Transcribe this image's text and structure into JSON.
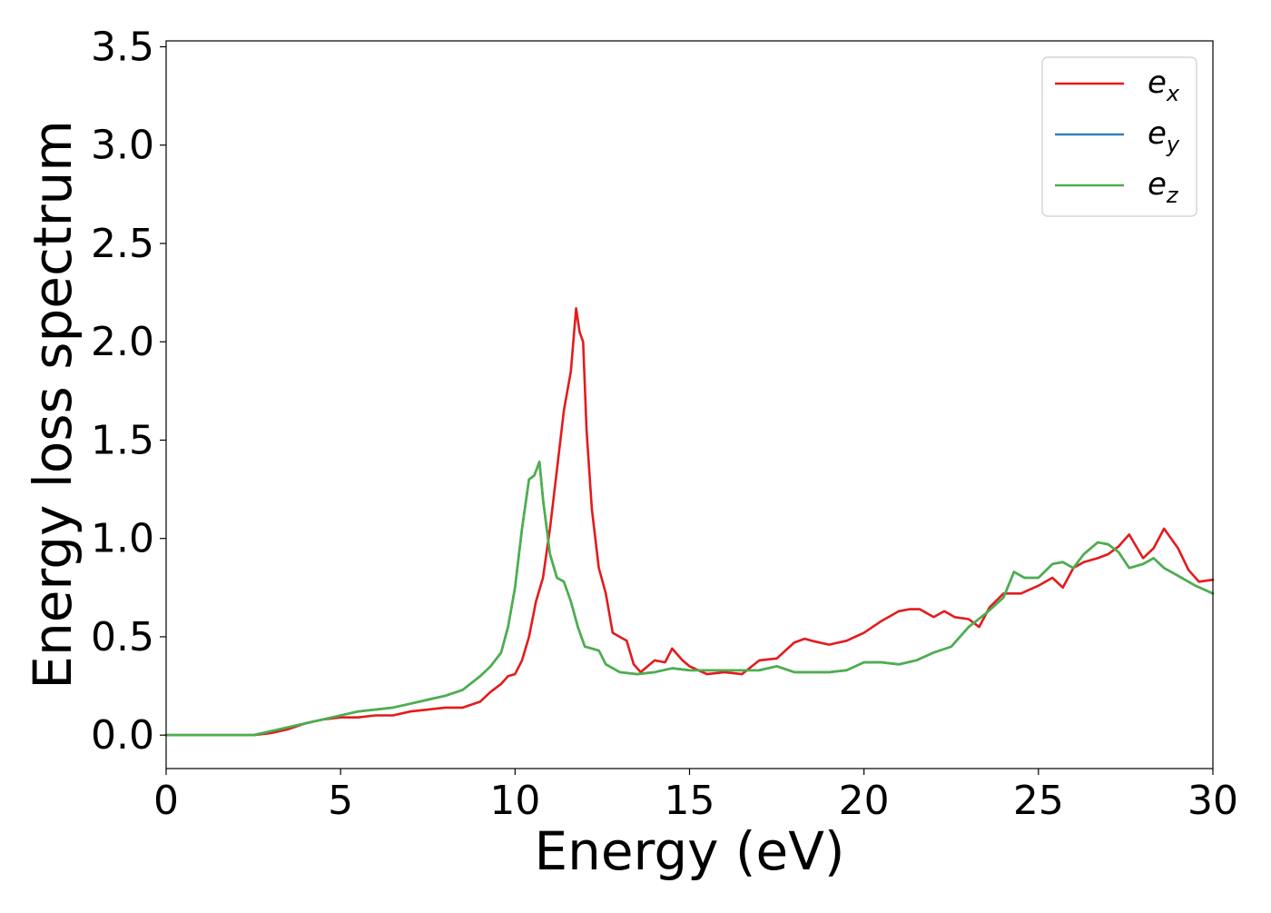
{
  "chart_data": {
    "type": "line",
    "title": "",
    "xlabel": "Energy (eV)",
    "ylabel": "Energy loss spectrum",
    "xlim": [
      0,
      30
    ],
    "ylim": [
      -0.17,
      3.53
    ],
    "xticks": [
      0,
      5,
      10,
      15,
      20,
      25,
      30
    ],
    "yticks": [
      0.0,
      0.5,
      1.0,
      1.5,
      2.0,
      2.5,
      3.0,
      3.5
    ],
    "xtick_labels": [
      "0",
      "5",
      "10",
      "15",
      "20",
      "25",
      "30"
    ],
    "ytick_labels": [
      "0.0",
      "0.5",
      "1.0",
      "1.5",
      "2.0",
      "2.5",
      "3.0",
      "3.5"
    ],
    "grid": false,
    "legend_position": "top-right",
    "series": [
      {
        "name": "e_x",
        "legend_base": "e",
        "legend_sub": "x",
        "color": "#e41a1c",
        "x": [
          0,
          1,
          2,
          2.5,
          3,
          3.5,
          4,
          4.5,
          5,
          5.5,
          6,
          6.5,
          7,
          7.5,
          8,
          8.5,
          9,
          9.3,
          9.6,
          9.8,
          10,
          10.2,
          10.4,
          10.6,
          10.8,
          11,
          11.2,
          11.4,
          11.6,
          11.75,
          11.85,
          11.95,
          12.05,
          12.2,
          12.4,
          12.6,
          12.8,
          13,
          13.2,
          13.4,
          13.6,
          14,
          14.3,
          14.5,
          14.8,
          15,
          15.5,
          16,
          16.5,
          17,
          17.5,
          18,
          18.3,
          18.5,
          19,
          19.5,
          20,
          20.5,
          21,
          21.3,
          21.6,
          22,
          22.3,
          22.6,
          23,
          23.3,
          23.6,
          24,
          24.5,
          25,
          25.4,
          25.7,
          26,
          26.3,
          26.7,
          27,
          27.3,
          27.6,
          28,
          28.3,
          28.6,
          29,
          29.3,
          29.6,
          30
        ],
        "y": [
          0.0,
          0.0,
          0.0,
          0.0,
          0.01,
          0.03,
          0.06,
          0.08,
          0.09,
          0.09,
          0.1,
          0.1,
          0.12,
          0.13,
          0.14,
          0.14,
          0.17,
          0.22,
          0.26,
          0.3,
          0.31,
          0.38,
          0.5,
          0.68,
          0.8,
          1.05,
          1.35,
          1.65,
          1.85,
          2.17,
          2.05,
          2.0,
          1.55,
          1.15,
          0.85,
          0.72,
          0.52,
          0.5,
          0.48,
          0.36,
          0.32,
          0.38,
          0.37,
          0.44,
          0.38,
          0.35,
          0.31,
          0.32,
          0.31,
          0.38,
          0.39,
          0.47,
          0.49,
          0.48,
          0.46,
          0.48,
          0.52,
          0.58,
          0.63,
          0.64,
          0.64,
          0.6,
          0.63,
          0.6,
          0.59,
          0.55,
          0.65,
          0.72,
          0.72,
          0.76,
          0.8,
          0.75,
          0.85,
          0.88,
          0.9,
          0.92,
          0.96,
          1.02,
          0.9,
          0.95,
          1.05,
          0.95,
          0.84,
          0.78,
          0.79
        ]
      },
      {
        "name": "e_y",
        "legend_base": "e",
        "legend_sub": "y",
        "color": "#377eb8",
        "x": [
          0,
          1,
          2,
          2.5,
          3,
          3.5,
          4,
          4.5,
          5,
          5.5,
          6,
          6.5,
          7,
          7.5,
          8,
          8.5,
          9,
          9.3,
          9.6,
          9.8,
          10,
          10.2,
          10.4,
          10.55,
          10.7,
          10.8,
          11,
          11.2,
          11.4,
          11.6,
          11.8,
          12,
          12.2,
          12.4,
          12.6,
          13,
          13.5,
          14,
          14.5,
          15,
          15.5,
          16,
          17,
          17.5,
          18,
          19,
          19.5,
          20,
          20.5,
          21,
          21.5,
          22,
          22.5,
          23,
          23.5,
          24,
          24.3,
          24.6,
          25,
          25.4,
          25.7,
          26,
          26.3,
          26.7,
          27,
          27.3,
          27.6,
          28,
          28.3,
          28.6,
          29,
          29.5,
          30
        ],
        "y": [
          0.0,
          0.0,
          0.0,
          0.0,
          0.02,
          0.04,
          0.06,
          0.08,
          0.1,
          0.12,
          0.13,
          0.14,
          0.16,
          0.18,
          0.2,
          0.23,
          0.3,
          0.35,
          0.42,
          0.55,
          0.75,
          1.05,
          1.3,
          1.32,
          1.39,
          1.2,
          0.92,
          0.8,
          0.78,
          0.68,
          0.55,
          0.45,
          0.44,
          0.43,
          0.36,
          0.32,
          0.31,
          0.32,
          0.34,
          0.33,
          0.33,
          0.33,
          0.33,
          0.35,
          0.32,
          0.32,
          0.33,
          0.37,
          0.37,
          0.36,
          0.38,
          0.42,
          0.45,
          0.55,
          0.62,
          0.7,
          0.83,
          0.8,
          0.8,
          0.87,
          0.88,
          0.85,
          0.92,
          0.98,
          0.97,
          0.93,
          0.85,
          0.87,
          0.9,
          0.85,
          0.81,
          0.76,
          0.72
        ]
      },
      {
        "name": "e_z",
        "legend_base": "e",
        "legend_sub": "z",
        "color": "#4daf4a",
        "x": [
          0,
          1,
          2,
          2.5,
          3,
          3.5,
          4,
          4.5,
          5,
          5.5,
          6,
          6.5,
          7,
          7.5,
          8,
          8.5,
          9,
          9.3,
          9.6,
          9.8,
          10,
          10.2,
          10.4,
          10.55,
          10.7,
          10.8,
          11,
          11.2,
          11.4,
          11.6,
          11.8,
          12,
          12.2,
          12.4,
          12.6,
          13,
          13.5,
          14,
          14.5,
          15,
          15.5,
          16,
          17,
          17.5,
          18,
          19,
          19.5,
          20,
          20.5,
          21,
          21.5,
          22,
          22.5,
          23,
          23.5,
          24,
          24.3,
          24.6,
          25,
          25.4,
          25.7,
          26,
          26.3,
          26.7,
          27,
          27.3,
          27.6,
          28,
          28.3,
          28.6,
          29,
          29.5,
          30
        ],
        "y": [
          0.0,
          0.0,
          0.0,
          0.0,
          0.02,
          0.04,
          0.06,
          0.08,
          0.1,
          0.12,
          0.13,
          0.14,
          0.16,
          0.18,
          0.2,
          0.23,
          0.3,
          0.35,
          0.42,
          0.55,
          0.75,
          1.05,
          1.3,
          1.32,
          1.39,
          1.2,
          0.92,
          0.8,
          0.78,
          0.68,
          0.55,
          0.45,
          0.44,
          0.43,
          0.36,
          0.32,
          0.31,
          0.32,
          0.34,
          0.33,
          0.33,
          0.33,
          0.33,
          0.35,
          0.32,
          0.32,
          0.33,
          0.37,
          0.37,
          0.36,
          0.38,
          0.42,
          0.45,
          0.55,
          0.62,
          0.7,
          0.83,
          0.8,
          0.8,
          0.87,
          0.88,
          0.85,
          0.92,
          0.98,
          0.97,
          0.93,
          0.85,
          0.87,
          0.9,
          0.85,
          0.81,
          0.76,
          0.72
        ]
      }
    ]
  }
}
